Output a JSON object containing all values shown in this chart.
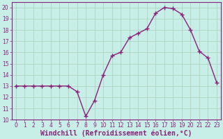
{
  "x": [
    0,
    1,
    2,
    3,
    4,
    5,
    6,
    7,
    8,
    9,
    10,
    11,
    12,
    13,
    14,
    15,
    16,
    17,
    18,
    19,
    20,
    21,
    22,
    23
  ],
  "y": [
    13,
    13,
    13,
    13,
    13,
    13,
    13,
    12.5,
    10.3,
    11.7,
    14.0,
    15.7,
    16.0,
    17.3,
    17.7,
    18.1,
    19.5,
    20.0,
    19.9,
    19.4,
    18.0,
    16.1,
    15.5,
    13.3
  ],
  "line_color": "#882277",
  "marker": "+",
  "marker_size": 4,
  "marker_lw": 1.0,
  "background_color": "#c8eee8",
  "grid_color": "#aaccbb",
  "xlabel": "Windchill (Refroidissement éolien,°C)",
  "xlabel_fontsize": 7,
  "xlim": [
    -0.5,
    23.5
  ],
  "ylim": [
    10,
    20.5
  ],
  "yticks": [
    10,
    11,
    12,
    13,
    14,
    15,
    16,
    17,
    18,
    19,
    20
  ],
  "xticks": [
    0,
    1,
    2,
    3,
    4,
    5,
    6,
    7,
    8,
    9,
    10,
    11,
    12,
    13,
    14,
    15,
    16,
    17,
    18,
    19,
    20,
    21,
    22,
    23
  ],
  "tick_fontsize": 5.5,
  "spine_color": "#882277",
  "line_width": 1.0
}
